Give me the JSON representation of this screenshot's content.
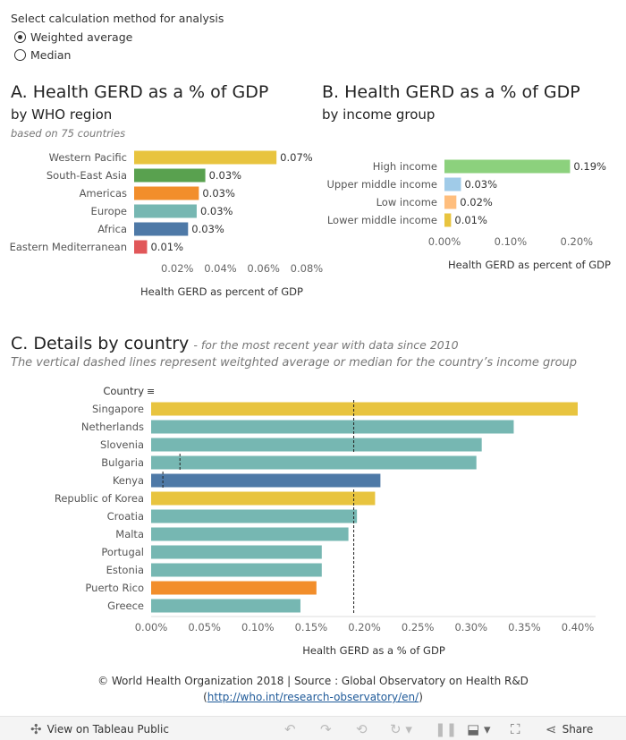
{
  "controls": {
    "title": "Select calculation method for analysis",
    "options": [
      {
        "label": "Weighted average",
        "selected": true
      },
      {
        "label": "Median",
        "selected": false
      }
    ]
  },
  "section_a": {
    "title": "A. Health GERD as a % of GDP",
    "subtitle": "by WHO region",
    "note": "based on 75 countries"
  },
  "section_b": {
    "title": "B. Health GERD as a % of GDP",
    "subtitle": "by income group"
  },
  "section_c": {
    "title": "C. Details by country",
    "title_note": "- for the most recent year with data since 2010",
    "subtitle": "The vertical dashed lines represent weitghted average or median for the country’s income group",
    "column_header": "Country"
  },
  "chart_data": [
    {
      "type": "bar",
      "orientation": "horizontal",
      "categories": [
        "Western Pacific",
        "South-East Asia",
        "Americas",
        "Europe",
        "Africa",
        "Eastern Mediterranean"
      ],
      "values": [
        0.066,
        0.033,
        0.03,
        0.029,
        0.025,
        0.006
      ],
      "value_labels": [
        "0.07%",
        "0.03%",
        "0.03%",
        "0.03%",
        "0.03%",
        "0.01%"
      ],
      "colors": [
        "#e8c43f",
        "#59a14f",
        "#f28e2b",
        "#76b7b2",
        "#4e79a7",
        "#e15759"
      ],
      "xlabel": "Health GERD as percent of GDP",
      "xlim": [
        0,
        0.085
      ],
      "xticks": [
        0.02,
        0.04,
        0.06,
        0.08
      ],
      "xtick_labels": [
        "0.02%",
        "0.04%",
        "0.06%",
        "0.08%"
      ],
      "grid": false
    },
    {
      "type": "bar",
      "orientation": "horizontal",
      "categories": [
        "High income",
        "Upper middle income",
        "Low income",
        "Lower middle income"
      ],
      "values": [
        0.19,
        0.025,
        0.018,
        0.01
      ],
      "value_labels": [
        "0.19%",
        "0.03%",
        "0.02%",
        "0.01%"
      ],
      "colors": [
        "#8cd17d",
        "#a0cbe8",
        "#ffbe7d",
        "#e8c43f"
      ],
      "xlabel": "Health GERD as percent of GDP",
      "xlim": [
        0,
        0.23
      ],
      "xticks": [
        0,
        0.1,
        0.2
      ],
      "xtick_labels": [
        "0.00%",
        "0.10%",
        "0.20%"
      ],
      "grid": false
    },
    {
      "type": "bar",
      "orientation": "horizontal",
      "categories": [
        "Singapore",
        "Netherlands",
        "Slovenia",
        "Bulgaria",
        "Kenya",
        "Republic of Korea",
        "Croatia",
        "Malta",
        "Portugal",
        "Estonia",
        "Puerto Rico",
        "Greece"
      ],
      "values": [
        0.4,
        0.34,
        0.31,
        0.305,
        0.215,
        0.21,
        0.193,
        0.185,
        0.16,
        0.16,
        0.155,
        0.14
      ],
      "colors": [
        "#e8c43f",
        "#76b7b2",
        "#76b7b2",
        "#76b7b2",
        "#4e79a7",
        "#e8c43f",
        "#76b7b2",
        "#76b7b2",
        "#76b7b2",
        "#76b7b2",
        "#f28e2b",
        "#76b7b2"
      ],
      "reference_lines": [
        0.19,
        0.19,
        0.19,
        0.027,
        0.011,
        0.19,
        0.19,
        0.19,
        0.19,
        0.19,
        0.19,
        0.19
      ],
      "xlabel": "Health GERD as a % of GDP",
      "xlim": [
        0,
        0.4
      ],
      "xticks": [
        0,
        0.05,
        0.1,
        0.15,
        0.2,
        0.25,
        0.3,
        0.35,
        0.4
      ],
      "xtick_labels": [
        "0.00%",
        "0.05%",
        "0.10%",
        "0.15%",
        "0.20%",
        "0.25%",
        "0.30%",
        "0.35%",
        "0.40%"
      ],
      "grid": false
    }
  ],
  "footer": {
    "line1": "© World Health Organization 2018 | Source : Global Observatory on Health R&D",
    "open": "(",
    "link": "http://who.int/research-observatory/en/",
    "close": ")"
  },
  "toolbar": {
    "view_label": "View on Tableau Public",
    "share_label": "Share",
    "icons": [
      "tableau-icon",
      "undo-icon",
      "redo-icon",
      "revert-icon",
      "refresh-icon",
      "pause-icon",
      "download-icon",
      "fullscreen-icon",
      "share-icon"
    ]
  }
}
